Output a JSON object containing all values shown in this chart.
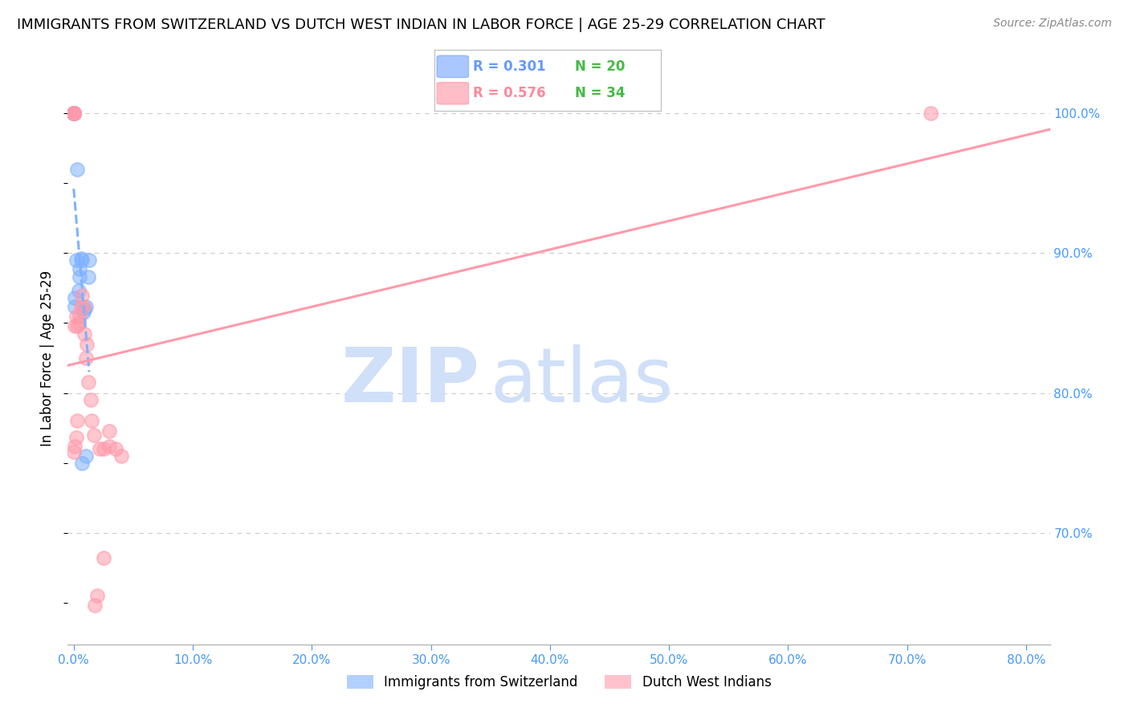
{
  "title": "IMMIGRANTS FROM SWITZERLAND VS DUTCH WEST INDIAN IN LABOR FORCE | AGE 25-29 CORRELATION CHART",
  "source": "Source: ZipAtlas.com",
  "xlabel_ticks": [
    "0.0%",
    "10.0%",
    "20.0%",
    "30.0%",
    "40.0%",
    "50.0%",
    "60.0%",
    "70.0%",
    "80.0%"
  ],
  "xlabel_vals": [
    0.0,
    0.1,
    0.2,
    0.3,
    0.4,
    0.5,
    0.6,
    0.7,
    0.8
  ],
  "ylabel_ticks": [
    "70.0%",
    "80.0%",
    "90.0%",
    "100.0%"
  ],
  "ylabel_vals": [
    0.7,
    0.8,
    0.9,
    1.0
  ],
  "ylim": [
    0.62,
    1.03
  ],
  "xlim": [
    -0.005,
    0.82
  ],
  "blue_R": 0.301,
  "blue_N": 20,
  "pink_R": 0.576,
  "pink_N": 34,
  "blue_label": "Immigrants from Switzerland",
  "pink_label": "Dutch West Indians",
  "blue_color": "#7EB2FF",
  "pink_color": "#FF9AAA",
  "blue_scatter_x": [
    0.001,
    0.001,
    0.002,
    0.003,
    0.004,
    0.005,
    0.005,
    0.006,
    0.007,
    0.007,
    0.008,
    0.009,
    0.01,
    0.01,
    0.012,
    0.013,
    0.0,
    0.0,
    0.0,
    0.0
  ],
  "blue_scatter_y": [
    0.862,
    0.868,
    0.895,
    0.96,
    0.873,
    0.883,
    0.889,
    0.896,
    0.895,
    0.75,
    0.858,
    0.86,
    0.755,
    0.862,
    0.883,
    0.895,
    1.0,
    1.0,
    1.0,
    1.0
  ],
  "pink_scatter_x": [
    0.0,
    0.001,
    0.001,
    0.002,
    0.002,
    0.003,
    0.003,
    0.004,
    0.005,
    0.006,
    0.007,
    0.008,
    0.009,
    0.01,
    0.011,
    0.012,
    0.014,
    0.015,
    0.017,
    0.018,
    0.02,
    0.022,
    0.025,
    0.025,
    0.03,
    0.03,
    0.035,
    0.04,
    0.0,
    0.0,
    0.0,
    0.0,
    0.0,
    0.72
  ],
  "pink_scatter_y": [
    0.758,
    0.848,
    0.762,
    0.768,
    0.855,
    0.78,
    0.848,
    0.85,
    0.855,
    0.862,
    0.87,
    0.862,
    0.842,
    0.825,
    0.835,
    0.808,
    0.795,
    0.78,
    0.77,
    0.648,
    0.655,
    0.76,
    0.682,
    0.76,
    0.773,
    0.762,
    0.76,
    0.755,
    1.0,
    1.0,
    1.0,
    1.0,
    1.0,
    1.0
  ],
  "watermark_zip": "ZIP",
  "watermark_atlas": "atlas",
  "watermark_color": "#d0e0f8",
  "bg_color": "#ffffff",
  "grid_color": "#cccccc",
  "axis_label_color": "#4499ff",
  "ylabel_text": "In Labor Force | Age 25-29",
  "legend_color_blue": "#6699FF",
  "legend_color_pink": "#FF8899",
  "legend_n_color": "#44bb44",
  "legend_r_blue_color": "#6699FF",
  "legend_r_pink_color": "#FF8899"
}
